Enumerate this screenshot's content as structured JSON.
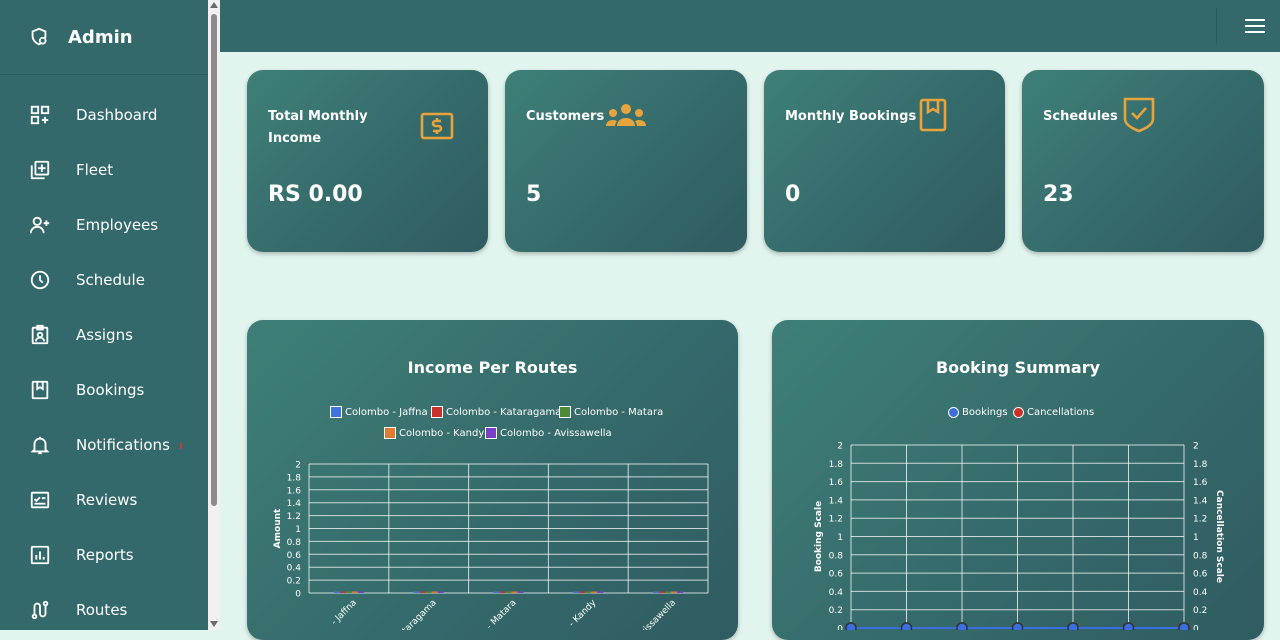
{
  "sidebar": {
    "brand": "Admin",
    "items": [
      {
        "label": "Dashboard",
        "icon": "dashboard-icon"
      },
      {
        "label": "Fleet",
        "icon": "fleet-icon"
      },
      {
        "label": "Employees",
        "icon": "employees-icon"
      },
      {
        "label": "Schedule",
        "icon": "clock-icon"
      },
      {
        "label": "Assigns",
        "icon": "assigns-icon"
      },
      {
        "label": "Bookings",
        "icon": "bookmark-icon"
      },
      {
        "label": "Notifications",
        "icon": "bell-icon"
      },
      {
        "label": "Reviews",
        "icon": "reviews-icon"
      },
      {
        "label": "Reports",
        "icon": "reports-icon"
      },
      {
        "label": "Routes",
        "icon": "routes-icon"
      }
    ]
  },
  "cards": [
    {
      "title": "Total Monthly Income",
      "value": "RS 0.00",
      "icon": "dollar-icon"
    },
    {
      "title": "Customers",
      "value": "5",
      "icon": "users-icon"
    },
    {
      "title": "Monthly Bookings",
      "value": "0",
      "icon": "bookmark-icon"
    },
    {
      "title": "Schedules",
      "value": "23",
      "icon": "shield-check-icon"
    }
  ],
  "colors": {
    "accent": "#e7a43c",
    "sidebar": "#33696b",
    "background": "#e1f4ee"
  },
  "chart_data": [
    {
      "type": "bar",
      "title": "Income Per Routes",
      "categories": [
        "Colombo - Jaffna",
        "Colombo - Kataragama",
        "Colombo - Matara",
        "Colombo - Kandy",
        "Colombo - Avissawella"
      ],
      "series": [
        {
          "name": "Colombo - Jaffna",
          "color": "#4173e0",
          "values": [
            0,
            0,
            0,
            0,
            0
          ]
        },
        {
          "name": "Colombo - Kataragama",
          "color": "#c8312c",
          "values": [
            0,
            0,
            0,
            0,
            0
          ]
        },
        {
          "name": "Colombo - Matara",
          "color": "#4e8a3a",
          "values": [
            0,
            0,
            0,
            0,
            0
          ]
        },
        {
          "name": "Colombo - Kandy",
          "color": "#e07b35",
          "values": [
            0,
            0,
            0,
            0,
            0
          ]
        },
        {
          "name": "Colombo - Avissawella",
          "color": "#7a3fc9",
          "values": [
            0,
            0,
            0,
            0,
            0
          ]
        }
      ],
      "ylabel": "Amount",
      "ylim": [
        0,
        2
      ],
      "yticks": [
        "0",
        "0.2",
        "0.4",
        "0.6",
        "0.8",
        "1",
        "1.2",
        "1.4",
        "1.6",
        "1.8",
        "2"
      ],
      "xtick_labels": [
        "- Jaffna",
        "Kataragama",
        "- Matara",
        "- Kandy",
        "Avissawella"
      ],
      "grid": true,
      "legend": "top"
    },
    {
      "type": "line",
      "title": "Booking Summary",
      "x": [
        1,
        2,
        3,
        4,
        5,
        6,
        7
      ],
      "series": [
        {
          "name": "Bookings",
          "color": "#3b6fe0",
          "values": [
            0,
            0,
            0,
            0,
            0,
            0,
            0
          ]
        },
        {
          "name": "Cancellations",
          "color": "#c8312c",
          "values": [
            0,
            0,
            0,
            0,
            0,
            0,
            0
          ]
        }
      ],
      "ylabel": "Booking Scale",
      "y2label": "Cancellation Scale",
      "ylim": [
        0,
        2
      ],
      "yticks": [
        "0",
        "0.2",
        "0.4",
        "0.6",
        "0.8",
        "1",
        "1.2",
        "1.4",
        "1.6",
        "1.8",
        "2"
      ],
      "grid": true,
      "legend": "top"
    }
  ]
}
